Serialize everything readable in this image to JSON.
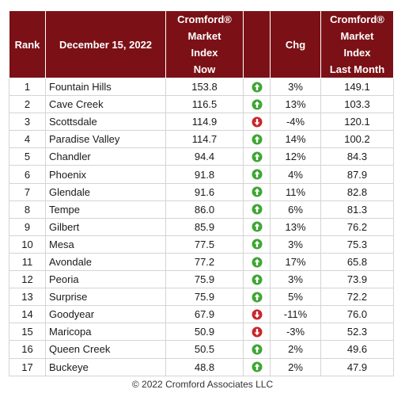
{
  "chart_data": {
    "type": "table",
    "columns": [
      {
        "key": "rank",
        "label": "Rank"
      },
      {
        "key": "city",
        "label": "December 15, 2022"
      },
      {
        "key": "now",
        "label": "Cromford® Market Index Now"
      },
      {
        "key": "dir",
        "label": ""
      },
      {
        "key": "chg",
        "label": "Chg"
      },
      {
        "key": "last",
        "label": "Cromford® Market Index Last Month"
      }
    ],
    "header_lines": {
      "now": [
        "Cromford®",
        "Market",
        "Index",
        "Now"
      ],
      "last": [
        "Cromford®",
        "Market",
        "Index",
        "Last Month"
      ]
    },
    "rows": [
      {
        "rank": "1",
        "city": "Fountain Hills",
        "now": "153.8",
        "dir": "up",
        "chg": "3%",
        "last": "149.1"
      },
      {
        "rank": "2",
        "city": "Cave Creek",
        "now": "116.5",
        "dir": "up",
        "chg": "13%",
        "last": "103.3"
      },
      {
        "rank": "3",
        "city": "Scottsdale",
        "now": "114.9",
        "dir": "down",
        "chg": "-4%",
        "last": "120.1"
      },
      {
        "rank": "4",
        "city": "Paradise Valley",
        "now": "114.7",
        "dir": "up",
        "chg": "14%",
        "last": "100.2"
      },
      {
        "rank": "5",
        "city": "Chandler",
        "now": "94.4",
        "dir": "up",
        "chg": "12%",
        "last": "84.3"
      },
      {
        "rank": "6",
        "city": "Phoenix",
        "now": "91.8",
        "dir": "up",
        "chg": "4%",
        "last": "87.9"
      },
      {
        "rank": "7",
        "city": "Glendale",
        "now": "91.6",
        "dir": "up",
        "chg": "11%",
        "last": "82.8"
      },
      {
        "rank": "8",
        "city": "Tempe",
        "now": "86.0",
        "dir": "up",
        "chg": "6%",
        "last": "81.3"
      },
      {
        "rank": "9",
        "city": "Gilbert",
        "now": "85.9",
        "dir": "up",
        "chg": "13%",
        "last": "76.2"
      },
      {
        "rank": "10",
        "city": "Mesa",
        "now": "77.5",
        "dir": "up",
        "chg": "3%",
        "last": "75.3"
      },
      {
        "rank": "11",
        "city": "Avondale",
        "now": "77.2",
        "dir": "up",
        "chg": "17%",
        "last": "65.8"
      },
      {
        "rank": "12",
        "city": "Peoria",
        "now": "75.9",
        "dir": "up",
        "chg": "3%",
        "last": "73.9"
      },
      {
        "rank": "13",
        "city": "Surprise",
        "now": "75.9",
        "dir": "up",
        "chg": "5%",
        "last": "72.2"
      },
      {
        "rank": "14",
        "city": "Goodyear",
        "now": "67.9",
        "dir": "down",
        "chg": "-11%",
        "last": "76.0"
      },
      {
        "rank": "15",
        "city": "Maricopa",
        "now": "50.9",
        "dir": "down",
        "chg": "-3%",
        "last": "52.3"
      },
      {
        "rank": "16",
        "city": "Queen Creek",
        "now": "50.5",
        "dir": "up",
        "chg": "2%",
        "last": "49.6"
      },
      {
        "rank": "17",
        "city": "Buckeye",
        "now": "48.8",
        "dir": "up",
        "chg": "2%",
        "last": "47.9"
      }
    ]
  },
  "colors": {
    "header_bg": "#7b1116",
    "up_arrow": "#3fa535",
    "down_arrow": "#c8262b"
  },
  "icons": {
    "up": "green-up-arrow-icon",
    "down": "red-down-arrow-icon"
  },
  "footer": "© 2022 Cromford Associates LLC"
}
